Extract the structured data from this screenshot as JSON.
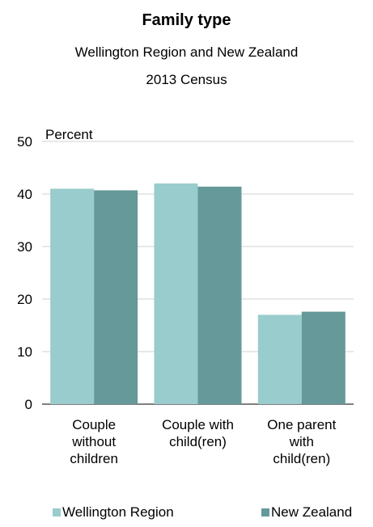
{
  "chart_data": {
    "type": "bar",
    "title": "Family type",
    "subtitle_line1": "Wellington Region and New Zealand",
    "subtitle_line2": "2013 Census",
    "ylabel": "Percent",
    "xlabel": "",
    "ylim": [
      0,
      50
    ],
    "yticks": [
      0,
      10,
      20,
      30,
      40,
      50
    ],
    "grid": true,
    "legend_position": "bottom",
    "categories": [
      [
        "Couple",
        "without",
        "children"
      ],
      [
        "Couple with",
        "child(ren)"
      ],
      [
        "One parent",
        "with",
        "child(ren)"
      ]
    ],
    "series": [
      {
        "name": "Wellington Region",
        "color": "#99cccc",
        "values": [
          41.0,
          42.0,
          17.0
        ]
      },
      {
        "name": "New Zealand",
        "color": "#669999",
        "values": [
          40.7,
          41.4,
          17.6
        ]
      }
    ]
  }
}
